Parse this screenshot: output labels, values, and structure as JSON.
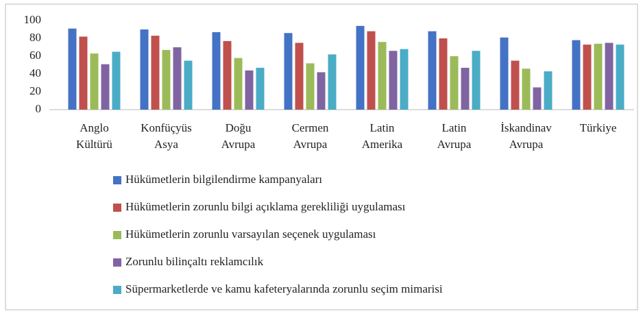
{
  "chart_data": {
    "type": "bar",
    "categories": [
      "Anglo Kültürü",
      "Konfüçyüs Asya",
      "Doğu Avrupa",
      "Cermen Avrupa",
      "Latin Amerika",
      "Latin Avrupa",
      "İskandinav Avrupa",
      "Türkiye"
    ],
    "series": [
      {
        "name": "Hükümetlerin bilgilendirme kampanyaları",
        "color": "#4472c4",
        "values": [
          91,
          90,
          87,
          86,
          94,
          88,
          81,
          78
        ]
      },
      {
        "name": "Hükümetlerin zorunlu bilgi açıklama gerekliliği uygulaması",
        "color": "#c0504d",
        "values": [
          82,
          83,
          77,
          75,
          88,
          80,
          55,
          73
        ]
      },
      {
        "name": "Hükümetlerin zorunlu varsayılan seçenek uygulaması",
        "color": "#9bbb59",
        "values": [
          63,
          67,
          58,
          52,
          76,
          60,
          46,
          74
        ]
      },
      {
        "name": "Zorunlu bilinçaltı reklamcılık",
        "color": "#8064a2",
        "values": [
          51,
          70,
          44,
          42,
          66,
          47,
          25,
          75
        ]
      },
      {
        "name": "Süpermarketlerde ve kamu kafeteryalarında zorunlu seçim mimarisi",
        "color": "#4bacc6",
        "values": [
          65,
          55,
          47,
          62,
          68,
          66,
          43,
          73
        ]
      }
    ],
    "ylim": [
      0,
      100
    ],
    "yticks": [
      0,
      20,
      40,
      60,
      80,
      100
    ],
    "grid": false,
    "legend": "bottom"
  }
}
